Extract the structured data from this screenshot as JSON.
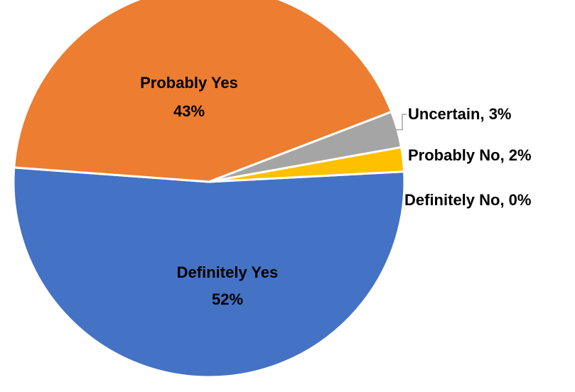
{
  "chart_data": {
    "type": "pie",
    "categories": [
      "Definitely Yes",
      "Probably Yes",
      "Uncertain",
      "Probably No",
      "Definitely No"
    ],
    "values": [
      52,
      43,
      3,
      2,
      0
    ],
    "labels": [
      "52%",
      "43%",
      "Uncertain, 3%",
      "Probably No, 2%",
      "Definitely No, 0%"
    ],
    "colors": [
      "#4472C4",
      "#ED7D31",
      "#A5A5A5",
      "#FFC000",
      "#5B9BD5"
    ],
    "label_color": "#000000"
  }
}
